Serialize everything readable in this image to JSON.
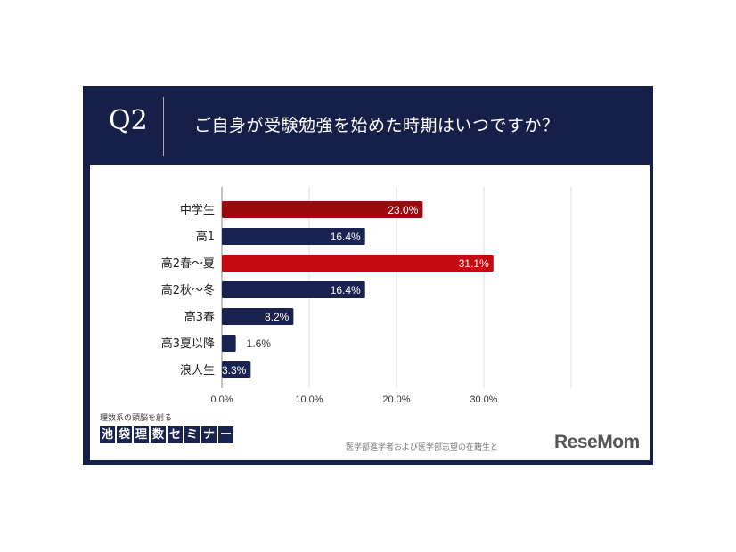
{
  "header": {
    "q_label": "Q2",
    "title": "ご自身が受験勉強を始めた時期はいつですか？"
  },
  "chart_data": {
    "type": "bar",
    "orientation": "horizontal",
    "categories": [
      "中学生",
      "高1",
      "高2春～夏",
      "高2秋～冬",
      "高3春",
      "高3夏以降",
      "浪人生"
    ],
    "values": [
      23.0,
      16.4,
      31.1,
      16.4,
      8.2,
      1.6,
      3.3
    ],
    "data_labels": [
      "23.0%",
      "16.4%",
      "31.1%",
      "16.4%",
      "8.2%",
      "1.6%",
      "3.3%"
    ],
    "bar_colors": [
      "#9b0a0f",
      "#1a2350",
      "#c40a10",
      "#1a2350",
      "#1a2350",
      "#1a2350",
      "#1a2350"
    ],
    "xlim": [
      0,
      40
    ],
    "x_ticks": [
      0,
      10,
      20,
      30,
      40
    ],
    "x_tick_labels": [
      "0.0%",
      "10.0%",
      "20.0%",
      "30.0%",
      ""
    ],
    "grid": true,
    "legend": "none"
  },
  "footer": {
    "tagline": "理数系の頭脳を創る",
    "brand_chars": [
      "池",
      "袋",
      "理",
      "数",
      "セ",
      "ミ",
      "ナ",
      "ー"
    ],
    "source": "医学部進学者および医学部志望の在籍生と",
    "logo": "ReseMom"
  }
}
